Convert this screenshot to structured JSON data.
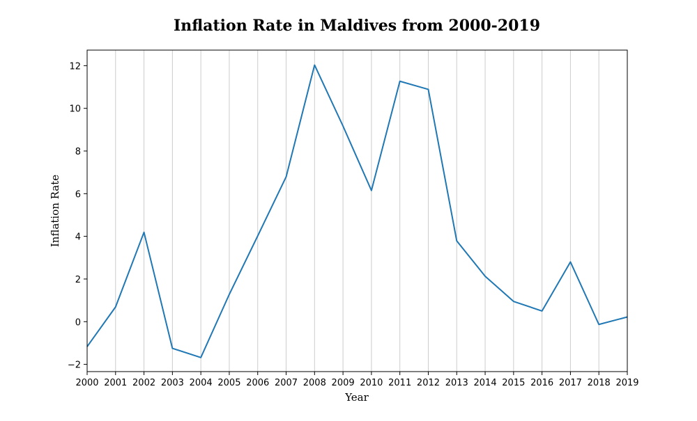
{
  "chart_data": {
    "type": "line",
    "title": "Inflation Rate in Maldives from 2000-2019",
    "xlabel": "Year",
    "ylabel": "Inflation Rate",
    "x": [
      2000,
      2001,
      2002,
      2003,
      2004,
      2005,
      2006,
      2007,
      2008,
      2009,
      2010,
      2011,
      2012,
      2013,
      2014,
      2015,
      2016,
      2017,
      2018,
      2019
    ],
    "x_tick_labels": [
      "2000",
      "2001",
      "2002",
      "2003",
      "2004",
      "2005",
      "2006",
      "2007",
      "2008",
      "2009",
      "2010",
      "2011",
      "2012",
      "2013",
      "2014",
      "2015",
      "2016",
      "2017",
      "2018",
      "2019"
    ],
    "y_ticks": [
      -2,
      0,
      2,
      4,
      6,
      8,
      10,
      12
    ],
    "y_tick_labels": [
      "−2",
      "0",
      "2",
      "4",
      "6",
      "8",
      "10",
      "12"
    ],
    "series": [
      {
        "values": [
          -1.17,
          0.69,
          4.19,
          -1.25,
          -1.68,
          1.28,
          4.02,
          6.79,
          12.03,
          9.17,
          6.15,
          11.27,
          10.89,
          3.79,
          2.13,
          0.95,
          0.5,
          2.8,
          -0.13,
          0.22
        ]
      }
    ],
    "xlim": [
      2000,
      2019
    ],
    "ylim": [
      -2.34,
      12.73
    ],
    "grid": "vertical",
    "colors": {
      "line": "#1f77b4",
      "grid": "#cccccc",
      "axis": "#000000"
    }
  }
}
